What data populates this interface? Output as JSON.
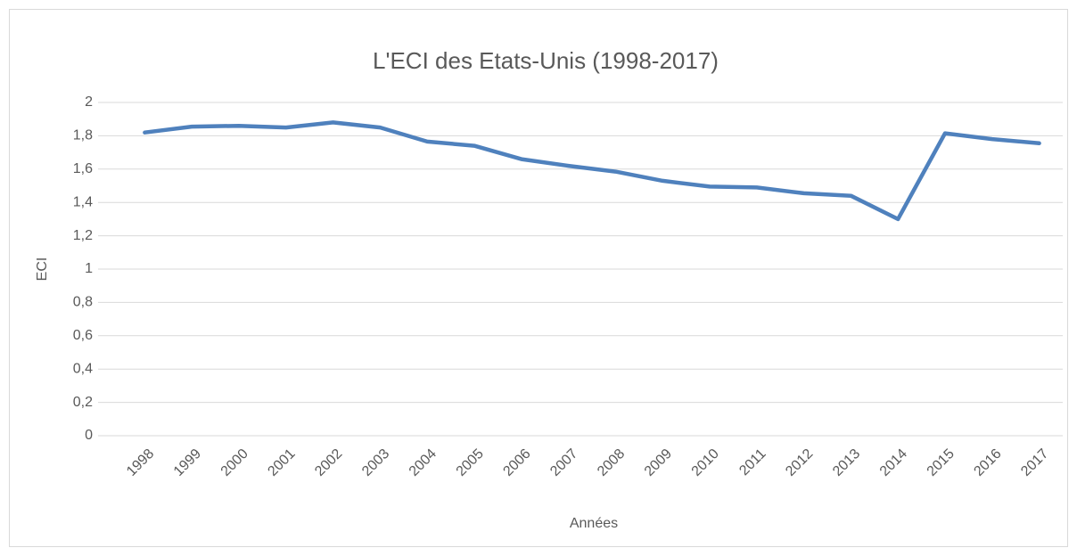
{
  "chart_data": {
    "type": "line",
    "title": "L'ECI des Etats-Unis (1998-2017)",
    "x_label": "Années",
    "y_label": "ECI",
    "categories": [
      "1998",
      "1999",
      "2000",
      "2001",
      "2002",
      "2003",
      "2004",
      "2005",
      "2006",
      "2007",
      "2008",
      "2009",
      "2010",
      "2011",
      "2012",
      "2013",
      "2014",
      "2015",
      "2016",
      "2017"
    ],
    "series": [
      {
        "name": "ECI",
        "color": "#4f81bd",
        "values": [
          1.82,
          1.855,
          1.86,
          1.85,
          1.88,
          1.85,
          1.765,
          1.74,
          1.66,
          1.62,
          1.585,
          1.53,
          1.495,
          1.49,
          1.455,
          1.44,
          1.3,
          1.815,
          1.78,
          1.755
        ]
      }
    ],
    "ylim": [
      0,
      2
    ],
    "yticks": [
      0,
      {
        "value": 0.2,
        "label": "0,2"
      },
      {
        "value": 0.4,
        "label": "0,4"
      },
      {
        "value": 0.6,
        "label": "0,6"
      },
      {
        "value": 0.8,
        "label": "0,8"
      },
      1,
      {
        "value": 1.2,
        "label": "1,2"
      },
      {
        "value": 1.4,
        "label": "1,4"
      },
      {
        "value": 1.6,
        "label": "1,6"
      },
      {
        "value": 1.8,
        "label": "1,8"
      },
      2
    ],
    "grid": true,
    "legend": false
  }
}
